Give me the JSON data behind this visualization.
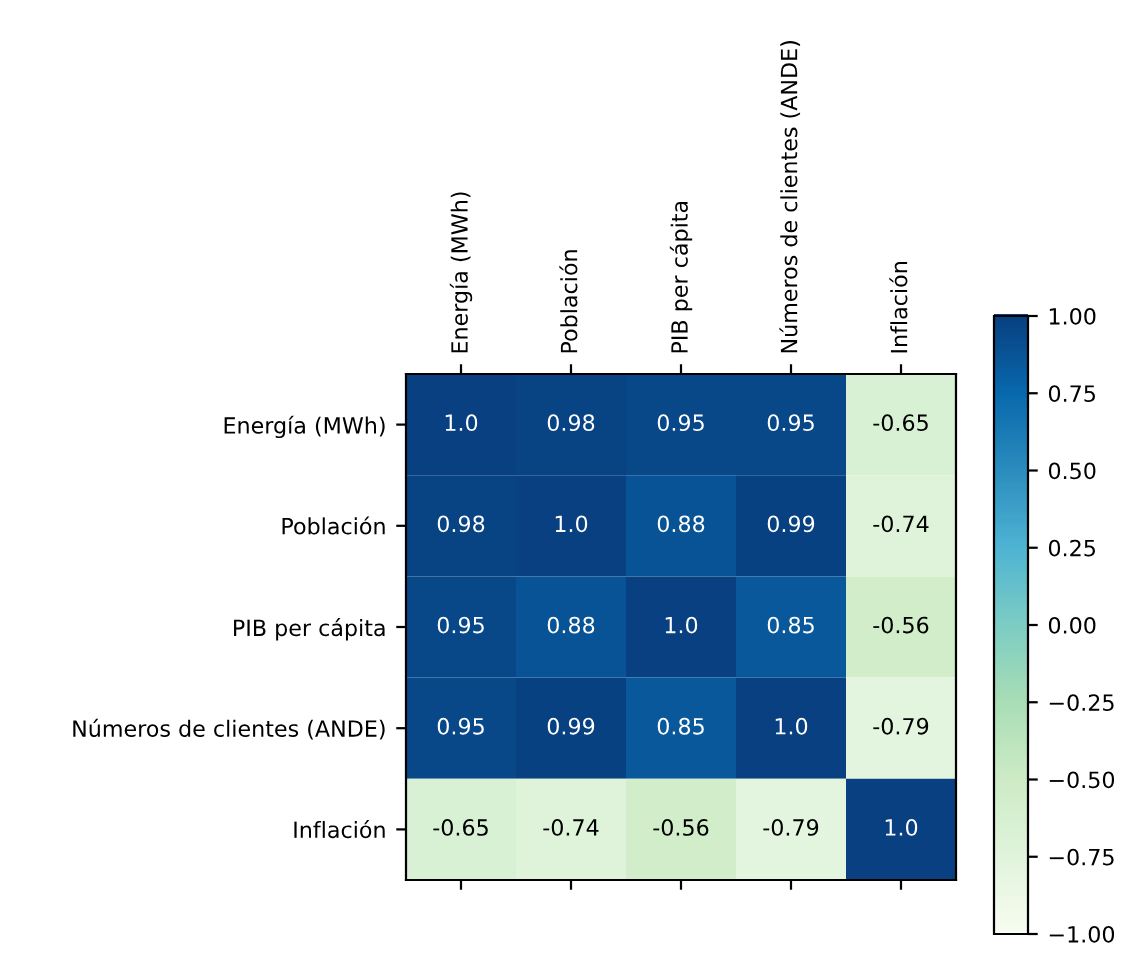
{
  "chart_data": {
    "type": "heatmap",
    "categories": [
      "Energía (MWh)",
      "Población",
      "PIB per cápita",
      "Números de clientes (ANDE)",
      "Inflación"
    ],
    "y_categories": [
      "Energía (MWh)",
      "Población",
      "PIB per cápita",
      "Números de clientes (ANDE)",
      "Inflación"
    ],
    "cells": [
      [
        1.0,
        0.98,
        0.95,
        0.95,
        -0.65
      ],
      [
        0.98,
        1.0,
        0.88,
        0.99,
        -0.74
      ],
      [
        0.95,
        0.88,
        1.0,
        0.85,
        -0.56
      ],
      [
        0.95,
        0.99,
        0.85,
        1.0,
        -0.79
      ],
      [
        -0.65,
        -0.74,
        -0.56,
        -0.79,
        1.0
      ]
    ],
    "cell_labels": [
      [
        "1.0",
        "0.98",
        "0.95",
        "0.95",
        "-0.65"
      ],
      [
        "0.98",
        "1.0",
        "0.88",
        "0.99",
        "-0.74"
      ],
      [
        "0.95",
        "0.88",
        "1.0",
        "0.85",
        "-0.56"
      ],
      [
        "0.95",
        "0.99",
        "0.85",
        "1.0",
        "-0.79"
      ],
      [
        "-0.65",
        "-0.74",
        "-0.56",
        "-0.79",
        "1.0"
      ]
    ],
    "clim": [
      -1.0,
      1.0
    ],
    "cticks": [
      {
        "value": -1.0,
        "label": "−1.00"
      },
      {
        "value": -0.75,
        "label": "−0.75"
      },
      {
        "value": -0.5,
        "label": "−0.50"
      },
      {
        "value": -0.25,
        "label": "−0.25"
      },
      {
        "value": 0.0,
        "label": "0.00"
      },
      {
        "value": 0.25,
        "label": "0.25"
      },
      {
        "value": 0.5,
        "label": "0.50"
      },
      {
        "value": 0.75,
        "label": "0.75"
      },
      {
        "value": 1.0,
        "label": "1.00"
      }
    ],
    "data_labels": true,
    "grid": false
  }
}
